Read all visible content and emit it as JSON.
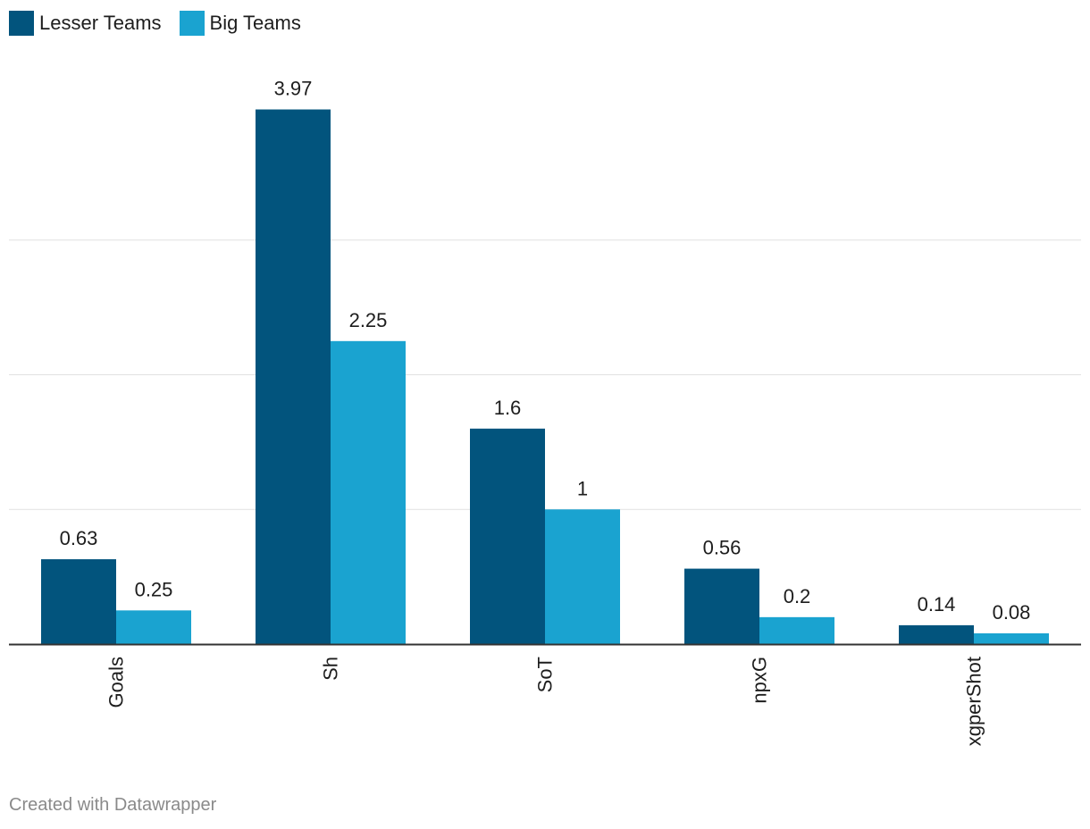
{
  "legend": {
    "items": [
      {
        "label": "Lesser Teams",
        "color": "#02547d"
      },
      {
        "label": "Big Teams",
        "color": "#1aa3d0"
      }
    ]
  },
  "footer": {
    "credit": "Created with Datawrapper"
  },
  "chart_data": {
    "type": "bar",
    "categories": [
      "Goals",
      "Sh",
      "SoT",
      "npxG",
      "xgperShot"
    ],
    "series": [
      {
        "name": "Lesser Teams",
        "color": "#02547d",
        "values": [
          0.63,
          3.97,
          1.6,
          0.56,
          0.14
        ],
        "labels": [
          "0.63",
          "3.97",
          "1.6",
          "0.56",
          "0.14"
        ]
      },
      {
        "name": "Big Teams",
        "color": "#1aa3d0",
        "values": [
          0.25,
          2.25,
          1,
          0.2,
          0.08
        ],
        "labels": [
          "0.25",
          "2.25",
          "1",
          "0.2",
          "0.08"
        ]
      }
    ],
    "title": "",
    "xlabel": "",
    "ylabel": "",
    "ylim": [
      0,
      4
    ],
    "gridlines": [
      1,
      2,
      3
    ],
    "grid": true,
    "legend": "top-left",
    "x_tick_rotation": "vertical"
  }
}
